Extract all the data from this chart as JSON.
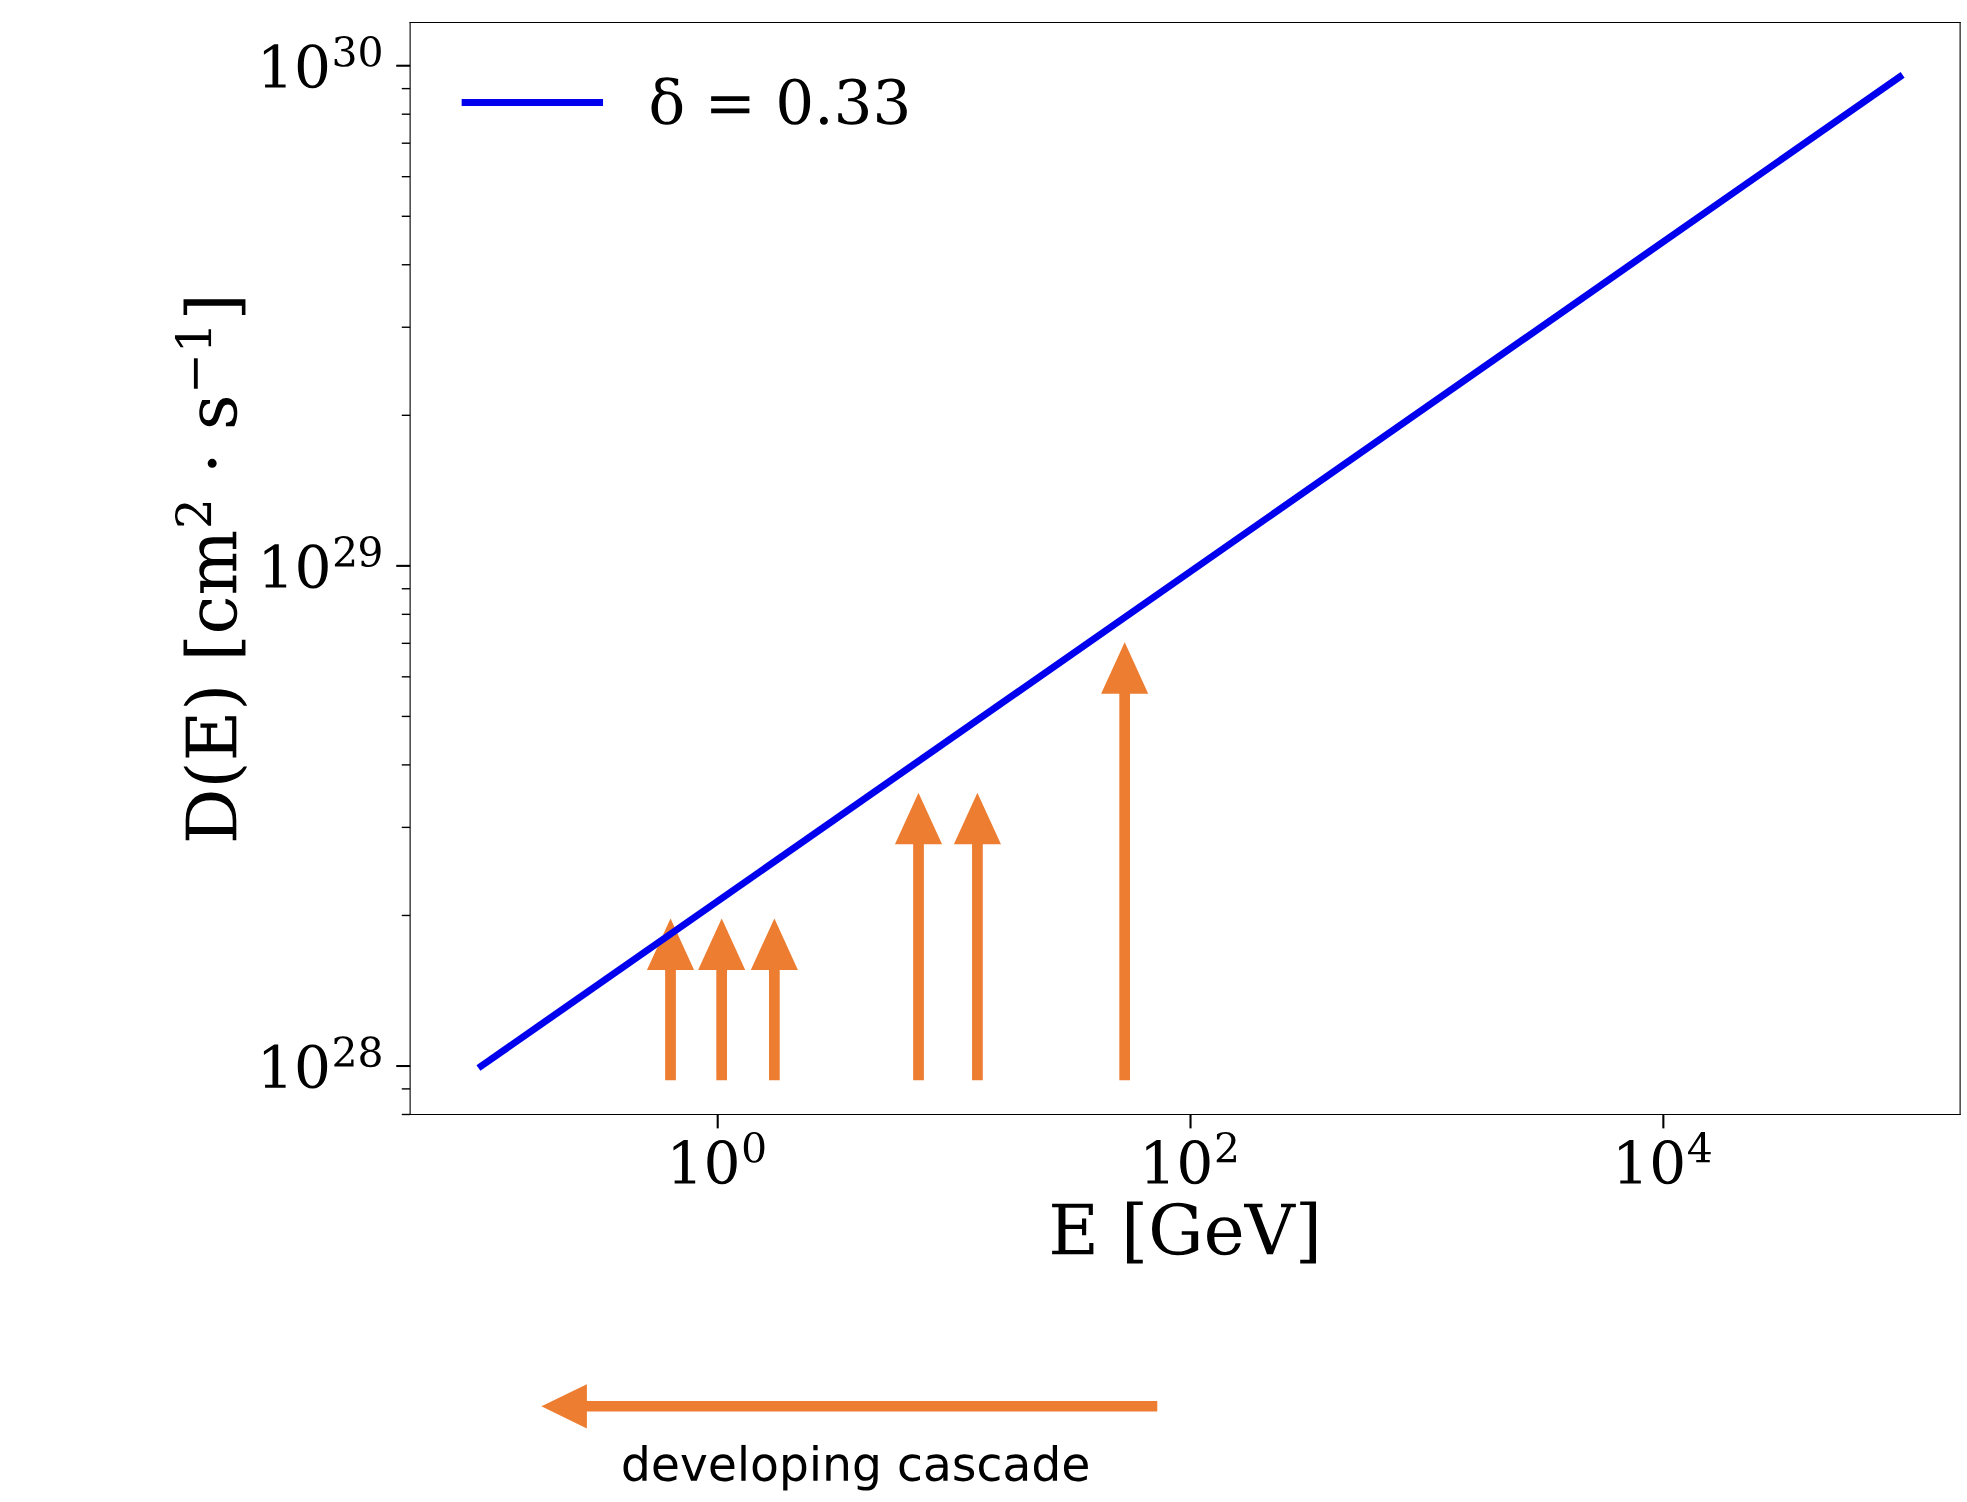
{
  "chart_data": {
    "type": "line",
    "xlabel": "E [GeV]",
    "ylabel": "D(E) [cm$^{2}$ · s$^{−1}$]",
    "x": [
      0.1,
      100000
    ],
    "series": [
      {
        "name": "δ = 0.33",
        "color": "#0000ee",
        "values": [
          1e+28,
          9.5e+29
        ]
      }
    ],
    "log": "xy",
    "xlim": [
      0.05,
      180000
    ],
    "ylim": [
      8e+27,
      1.22e+30
    ],
    "xticks": [
      {
        "value": 1,
        "label": "10$^{0}$"
      },
      {
        "value": 100,
        "label": "10$^{2}$"
      },
      {
        "value": 10000,
        "label": "10$^{4}$"
      }
    ],
    "yticks": [
      {
        "value": 1e+28,
        "label": "10$^{28}$"
      },
      {
        "value": 1e+29,
        "label": "10$^{29}$"
      },
      {
        "value": 1e+30,
        "label": "10$^{30}$"
      }
    ],
    "grid": false,
    "legend": "top left",
    "marker": "none",
    "line_style": "solid",
    "annotations": [
      "developing cascade"
    ]
  }
}
